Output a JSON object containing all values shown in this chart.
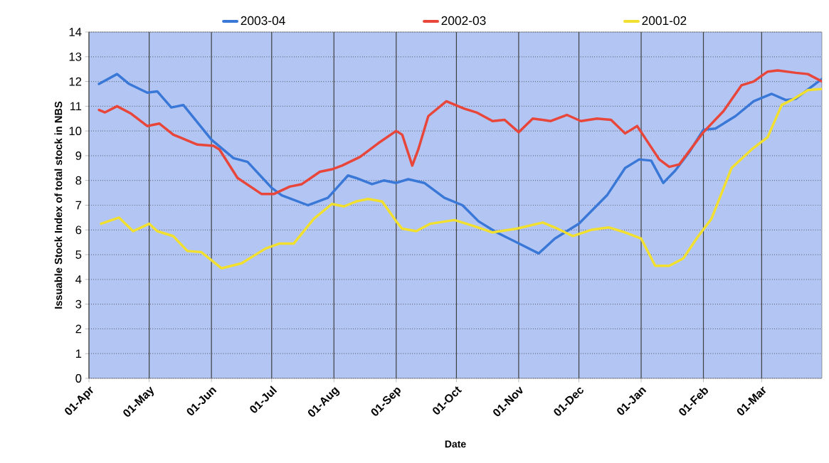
{
  "chart_data": {
    "type": "line",
    "xlabel": "Date",
    "ylabel": "Issuable Stock Index of total stock in NBS",
    "legend": "top",
    "grid": true,
    "line_style": "solid",
    "xlim": [
      "2003-04-01",
      "2004-03-31"
    ],
    "xticks": [
      {
        "value": "2003-04-01",
        "label": "01-Apr"
      },
      {
        "value": "2003-05-01",
        "label": "01-May"
      },
      {
        "value": "2003-06-01",
        "label": "01-Jun"
      },
      {
        "value": "2003-07-01",
        "label": "01-Jul"
      },
      {
        "value": "2003-08-01",
        "label": "01-Aug"
      },
      {
        "value": "2003-09-01",
        "label": "01-Sep"
      },
      {
        "value": "2003-10-01",
        "label": "01-Oct"
      },
      {
        "value": "2003-11-01",
        "label": "01-Nov"
      },
      {
        "value": "2003-12-01",
        "label": "01-Dec"
      },
      {
        "value": "2004-01-01",
        "label": "01-Jan"
      },
      {
        "value": "2004-02-01",
        "label": "01-Feb"
      },
      {
        "value": "2004-03-01",
        "label": "01-Mar"
      }
    ],
    "ylim": [
      0,
      14
    ],
    "yticks": [
      0,
      1,
      2,
      3,
      4,
      5,
      6,
      7,
      8,
      9,
      10,
      11,
      12,
      13,
      14
    ],
    "series": [
      {
        "name": "2003-04",
        "color": "#3a78d8",
        "x": [
          "2003-04-06",
          "2003-04-15",
          "2003-04-21",
          "2003-04-30",
          "2003-05-05",
          "2003-05-12",
          "2003-05-18",
          "2003-06-01",
          "2003-06-12",
          "2003-06-19",
          "2003-07-01",
          "2003-07-06",
          "2003-07-19",
          "2003-07-29",
          "2003-08-08",
          "2003-08-12",
          "2003-08-20",
          "2003-08-26",
          "2003-09-01",
          "2003-09-07",
          "2003-09-15",
          "2003-09-25",
          "2003-10-04",
          "2003-10-12",
          "2003-10-21",
          "2003-10-31",
          "2003-11-11",
          "2003-11-19",
          "2003-12-01",
          "2003-12-15",
          "2003-12-24",
          "2003-12-31",
          "2004-01-06",
          "2004-01-12",
          "2004-01-18",
          "2004-01-25",
          "2004-02-01",
          "2004-02-07",
          "2004-02-17",
          "2004-02-26",
          "2004-03-06",
          "2004-03-13",
          "2004-03-18",
          "2004-03-26",
          "2004-03-31"
        ],
        "values": [
          11.9,
          12.3,
          11.9,
          11.55,
          11.6,
          10.95,
          11.05,
          9.65,
          8.9,
          8.75,
          7.7,
          7.4,
          7.0,
          7.3,
          8.2,
          8.1,
          7.85,
          8.0,
          7.9,
          8.05,
          7.9,
          7.3,
          7.0,
          6.35,
          5.9,
          5.5,
          5.05,
          5.65,
          6.25,
          7.4,
          8.5,
          8.85,
          8.8,
          7.9,
          8.4,
          9.15,
          10.05,
          10.1,
          10.6,
          11.2,
          11.5,
          11.25,
          11.3,
          11.8,
          12.1
        ]
      },
      {
        "name": "2002-03",
        "color": "#e8463a",
        "x": [
          "2003-04-06",
          "2003-04-09",
          "2003-04-15",
          "2003-04-22",
          "2003-04-30",
          "2003-05-06",
          "2003-05-13",
          "2003-05-25",
          "2003-06-02",
          "2003-06-05",
          "2003-06-14",
          "2003-06-26",
          "2003-07-02",
          "2003-07-10",
          "2003-07-16",
          "2003-07-25",
          "2003-07-31",
          "2003-08-05",
          "2003-08-14",
          "2003-08-23",
          "2003-09-01",
          "2003-09-04",
          "2003-09-09",
          "2003-09-12",
          "2003-09-17",
          "2003-09-26",
          "2003-10-05",
          "2003-10-11",
          "2003-10-19",
          "2003-10-25",
          "2003-11-01",
          "2003-11-08",
          "2003-11-17",
          "2003-11-25",
          "2003-12-02",
          "2003-12-10",
          "2003-12-17",
          "2003-12-24",
          "2003-12-30",
          "2004-01-10",
          "2004-01-15",
          "2004-01-20",
          "2004-02-01",
          "2004-02-11",
          "2004-02-20",
          "2004-02-26",
          "2004-03-04",
          "2004-03-09",
          "2004-03-18",
          "2004-03-24",
          "2004-03-31"
        ],
        "values": [
          10.85,
          10.75,
          11.0,
          10.7,
          10.2,
          10.3,
          9.85,
          9.45,
          9.4,
          9.25,
          8.1,
          7.45,
          7.45,
          7.75,
          7.85,
          8.35,
          8.45,
          8.6,
          8.95,
          9.5,
          10.0,
          9.85,
          8.6,
          9.25,
          10.6,
          11.2,
          10.9,
          10.75,
          10.4,
          10.45,
          9.95,
          10.5,
          10.4,
          10.65,
          10.4,
          10.5,
          10.45,
          9.9,
          10.2,
          8.85,
          8.55,
          8.65,
          9.95,
          10.8,
          11.85,
          12.0,
          12.4,
          12.45,
          12.35,
          12.3,
          12.0
        ]
      },
      {
        "name": "2001-02",
        "color": "#f2e030",
        "x": [
          "2003-04-07",
          "2003-04-16",
          "2003-04-23",
          "2003-05-01",
          "2003-05-05",
          "2003-05-13",
          "2003-05-20",
          "2003-05-27",
          "2003-06-06",
          "2003-06-16",
          "2003-06-28",
          "2003-07-05",
          "2003-07-12",
          "2003-07-22",
          "2003-07-31",
          "2003-08-06",
          "2003-08-12",
          "2003-08-18",
          "2003-08-25",
          "2003-09-01",
          "2003-09-04",
          "2003-09-11",
          "2003-09-18",
          "2003-09-30",
          "2003-10-10",
          "2003-10-19",
          "2003-10-31",
          "2003-11-13",
          "2003-11-19",
          "2003-11-28",
          "2003-12-07",
          "2003-12-16",
          "2003-12-24",
          "2004-01-01",
          "2004-01-08",
          "2004-01-15",
          "2004-01-22",
          "2004-01-29",
          "2004-02-05",
          "2004-02-15",
          "2004-02-25",
          "2004-03-04",
          "2004-03-11",
          "2004-03-17",
          "2004-03-24",
          "2004-03-31"
        ],
        "values": [
          6.25,
          6.5,
          5.95,
          6.25,
          5.95,
          5.75,
          5.15,
          5.1,
          4.45,
          4.65,
          5.25,
          5.45,
          5.45,
          6.45,
          7.05,
          6.95,
          7.15,
          7.25,
          7.15,
          6.35,
          6.05,
          5.95,
          6.25,
          6.4,
          6.15,
          5.9,
          6.05,
          6.3,
          6.1,
          5.75,
          6.0,
          6.1,
          5.9,
          5.65,
          4.55,
          4.55,
          4.85,
          5.7,
          6.45,
          8.5,
          9.25,
          9.75,
          11.05,
          11.3,
          11.65,
          11.7
        ]
      }
    ]
  }
}
